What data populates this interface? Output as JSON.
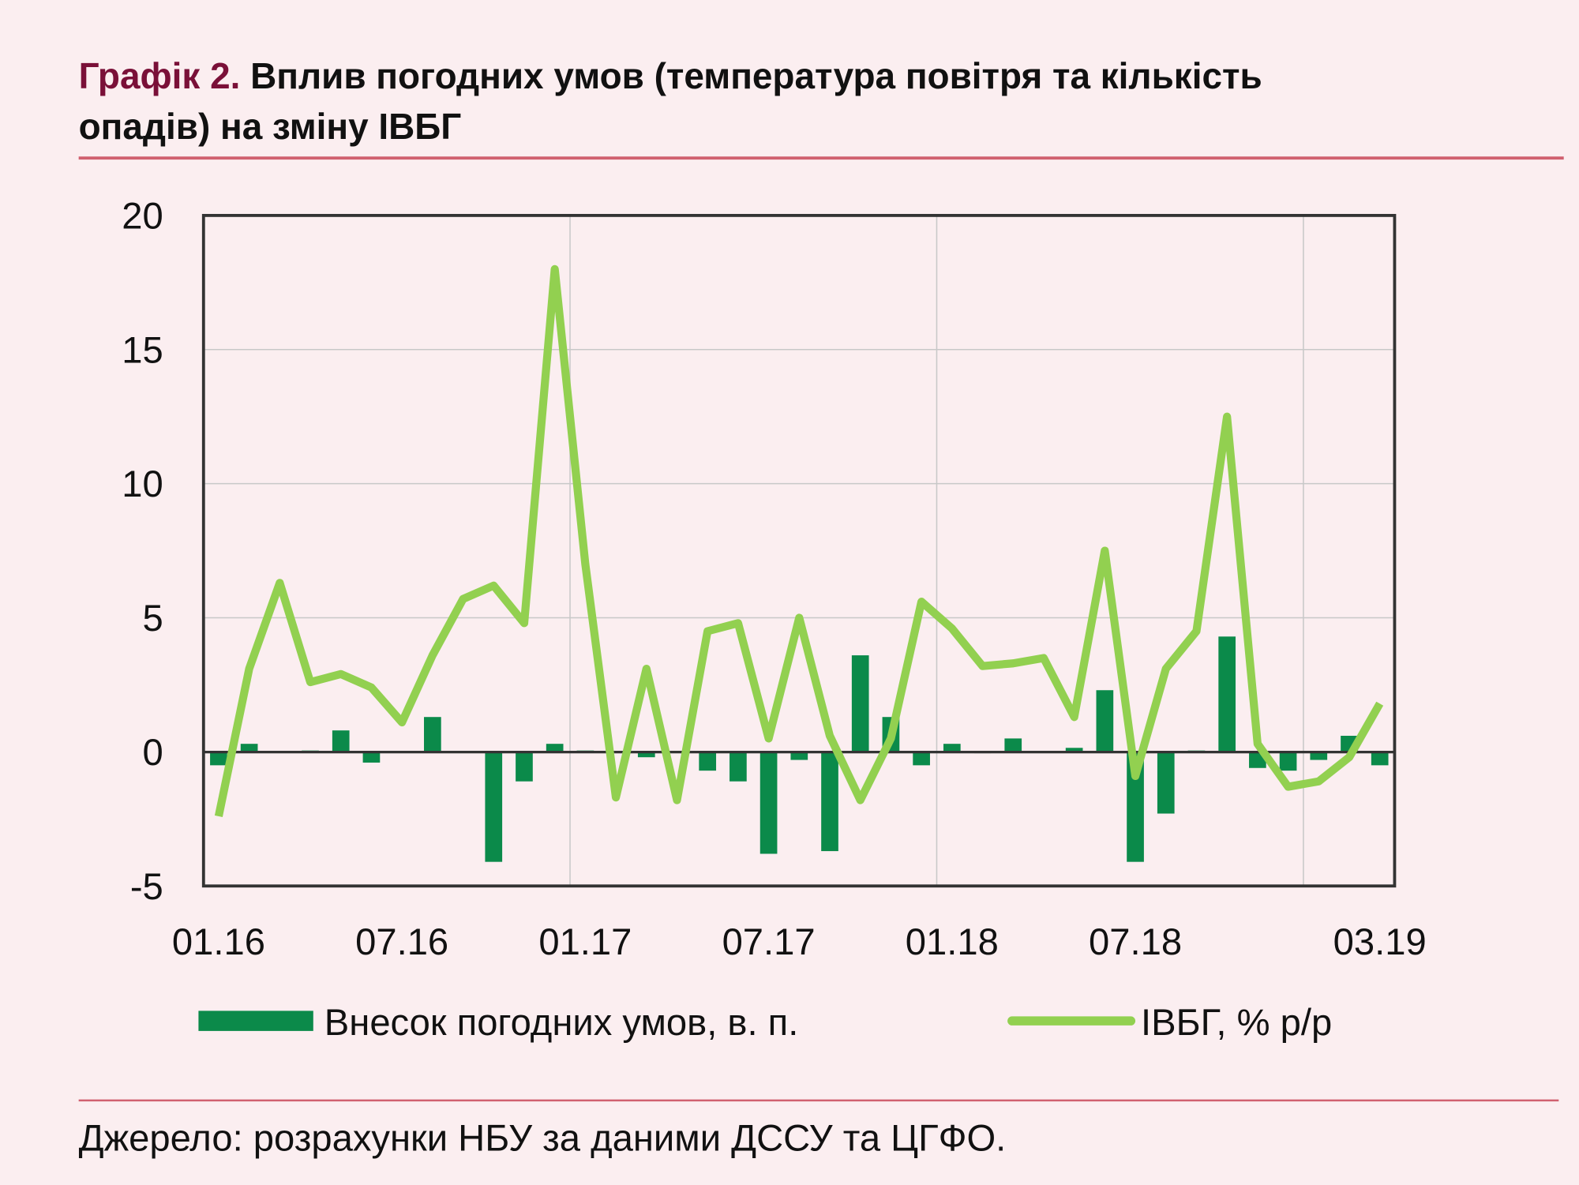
{
  "header": {
    "figure_number": "Графік 2.",
    "title_line1": "Вплив погодних умов (температура повітря та кількість",
    "title_line2": "опадів) на зміну ІВБГ"
  },
  "footer": {
    "source": "Джерело: розрахунки НБУ за даними ДССУ та ЦГФО."
  },
  "colors": {
    "bars": "#0b8a4a",
    "line": "#92d050",
    "rule": "#d0606f",
    "title_accent": "#7a1038",
    "background": "#fbeef0"
  },
  "chart_data": {
    "type": "bar+line",
    "ylim": [
      -5,
      20
    ],
    "yticks": [
      "20",
      "15",
      "10",
      "5",
      "0",
      "-5"
    ],
    "xtick_labels": [
      "01.16",
      "07.16",
      "01.17",
      "07.17",
      "01.18",
      "07.18",
      "03.19"
    ],
    "grid": true,
    "legend_position": "bottom",
    "x": [
      "01.16",
      "02.16",
      "03.16",
      "04.16",
      "05.16",
      "06.16",
      "07.16",
      "08.16",
      "09.16",
      "10.16",
      "11.16",
      "12.16",
      "01.17",
      "02.17",
      "03.17",
      "04.17",
      "05.17",
      "06.17",
      "07.17",
      "08.17",
      "09.17",
      "10.17",
      "11.17",
      "12.17",
      "01.18",
      "02.18",
      "03.18",
      "04.18",
      "05.18",
      "06.18",
      "07.18",
      "08.18",
      "09.18",
      "10.18",
      "11.18",
      "12.18",
      "01.19",
      "02.19",
      "03.19"
    ],
    "series": [
      {
        "name": "Внесок погодних умов, в. п.",
        "type": "bar",
        "values": [
          -0.5,
          0.3,
          0,
          0.05,
          0.8,
          -0.4,
          0,
          1.3,
          0,
          -4.1,
          -1.1,
          0.3,
          0.05,
          0,
          -0.2,
          0,
          -0.7,
          -1.1,
          -3.8,
          -0.3,
          -3.7,
          3.6,
          1.3,
          -0.5,
          0.3,
          -0.05,
          0.5,
          0,
          0.15,
          2.3,
          -4.1,
          -2.3,
          0.05,
          4.3,
          -0.6,
          -0.7,
          -0.3,
          0.6,
          -0.5
        ]
      },
      {
        "name": "ІВБГ, % р/р",
        "type": "line",
        "values": [
          -2.4,
          3.1,
          6.3,
          2.6,
          2.9,
          2.4,
          1.1,
          3.6,
          5.7,
          6.2,
          4.8,
          18.0,
          7.0,
          -1.7,
          3.1,
          -1.8,
          4.5,
          4.8,
          0.5,
          5.0,
          0.6,
          -1.8,
          0.5,
          5.6,
          4.6,
          3.2,
          3.3,
          3.5,
          1.3,
          7.5,
          -0.9,
          3.1,
          4.5,
          12.5,
          0.3,
          -1.3,
          -1.1,
          -0.2,
          1.8
        ]
      }
    ]
  }
}
